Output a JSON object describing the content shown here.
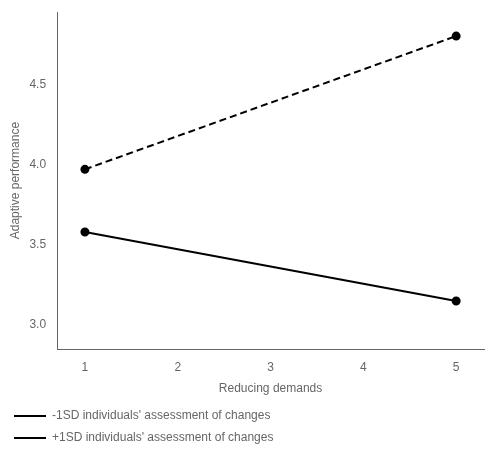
{
  "chart_data": {
    "type": "line",
    "xlabel": "Reducing demands",
    "ylabel": "Adaptive performance",
    "x": [
      1,
      5
    ],
    "series": [
      {
        "name": "-1SD individuals' assessment of changes",
        "color": "#000000",
        "values": [
          3.58,
          3.15
        ],
        "line_style": "solid",
        "marker": "circle"
      },
      {
        "name": "+1SD individuals' assessment of changes",
        "color": "#000000",
        "values": [
          3.97,
          4.8
        ],
        "line_style": "dashed",
        "marker": "circle"
      }
    ],
    "xlim": [
      0.7,
      5.3
    ],
    "ylim": [
      2.85,
      4.95
    ],
    "xticks": [
      1,
      2,
      3,
      4,
      5
    ],
    "yticks": [
      {
        "value": 3.0,
        "label": "3.0"
      },
      {
        "value": 3.5,
        "label": "3.5"
      },
      {
        "value": 4.0,
        "label": "4.0"
      },
      {
        "value": 4.5,
        "label": "4.5"
      }
    ],
    "grid": false,
    "legend": "lower left"
  }
}
